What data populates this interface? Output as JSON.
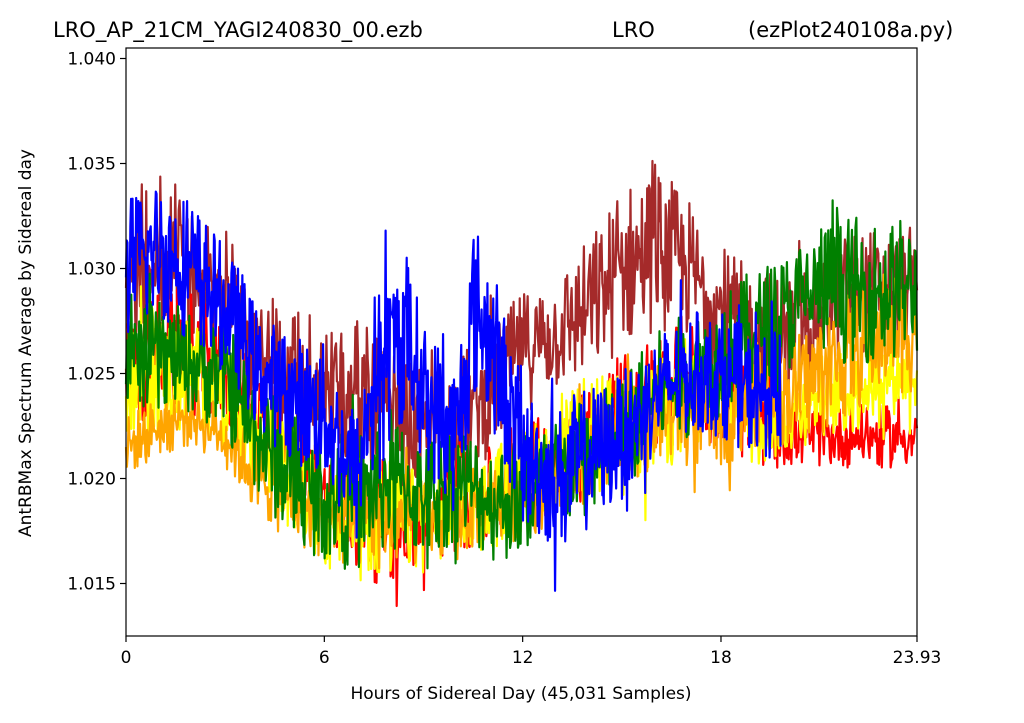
{
  "header": {
    "left": "LRO_AP_21CM_YAGI240830_00.ezb",
    "center": "LRO",
    "right": "(ezPlot240108a.py)"
  },
  "chart_data": {
    "type": "line",
    "xlabel": "Hours of Sidereal Day  (45,031 Samples)",
    "ylabel": "AntRBMax Spectrum Average by Sidereal day",
    "xlim": [
      0,
      23.93
    ],
    "ylim": [
      1.0125,
      1.0405
    ],
    "x_ticks": [
      {
        "value": 0,
        "label": "0"
      },
      {
        "value": 6,
        "label": "6"
      },
      {
        "value": 12,
        "label": "12"
      },
      {
        "value": 18,
        "label": "18"
      },
      {
        "value": 23.93,
        "label": "23.93"
      }
    ],
    "y_ticks": [
      {
        "value": 1.015,
        "label": "1.015"
      },
      {
        "value": 1.02,
        "label": "1.020"
      },
      {
        "value": 1.025,
        "label": "1.025"
      },
      {
        "value": 1.03,
        "label": "1.030"
      },
      {
        "value": 1.035,
        "label": "1.035"
      },
      {
        "value": 1.04,
        "label": "1.040"
      }
    ],
    "grid": false,
    "legend": "none",
    "series": [
      {
        "color": "#a52a2a",
        "hours": [
          0,
          1,
          2,
          3,
          4,
          5,
          6,
          7,
          8,
          9,
          10,
          11,
          12,
          13,
          14,
          15,
          16,
          17,
          18,
          19,
          20,
          21,
          22,
          23,
          23.93
        ],
        "center": [
          1.029,
          1.031,
          1.03,
          1.029,
          1.026,
          1.025,
          1.025,
          1.024,
          1.023,
          1.022,
          1.023,
          1.024,
          1.026,
          1.027,
          1.028,
          1.03,
          1.031,
          1.03,
          1.028,
          1.027,
          1.027,
          1.028,
          1.029,
          1.029,
          1.029
        ],
        "spread": [
          0.0035,
          0.0035,
          0.0035,
          0.003,
          0.003,
          0.003,
          0.003,
          0.0035,
          0.0035,
          0.003,
          0.003,
          0.003,
          0.003,
          0.003,
          0.0035,
          0.004,
          0.004,
          0.0035,
          0.003,
          0.003,
          0.003,
          0.003,
          0.003,
          0.003,
          0.003
        ]
      },
      {
        "color": "#ff0000",
        "hours": [
          0,
          1,
          2,
          3,
          4,
          5,
          6,
          7,
          8,
          9,
          10,
          11,
          12,
          13,
          14,
          15,
          16,
          17,
          18,
          19,
          20,
          21,
          22,
          23,
          23.93
        ],
        "center": [
          1.025,
          1.026,
          1.026,
          1.025,
          1.023,
          1.021,
          1.019,
          1.018,
          1.018,
          1.018,
          1.019,
          1.019,
          1.02,
          1.021,
          1.022,
          1.023,
          1.024,
          1.025,
          1.024,
          1.023,
          1.022,
          1.022,
          1.022,
          1.022,
          1.022
        ],
        "spread": [
          0.003,
          0.003,
          0.003,
          0.0025,
          0.0025,
          0.0025,
          0.0025,
          0.003,
          0.003,
          0.0025,
          0.0025,
          0.0025,
          0.0025,
          0.0025,
          0.003,
          0.003,
          0.003,
          0.003,
          0.0025,
          0.0025,
          0.0015,
          0.0015,
          0.0015,
          0.0015,
          0.0015
        ]
      },
      {
        "color": "#ffff00",
        "hours": [
          0,
          1,
          2,
          3,
          4,
          5,
          6,
          7,
          8,
          9,
          10,
          11,
          12,
          13,
          14,
          15,
          16,
          17,
          18,
          19,
          20,
          21,
          22,
          23,
          23.93
        ],
        "center": [
          1.024,
          1.025,
          1.025,
          1.024,
          1.022,
          1.02,
          1.018,
          1.018,
          1.018,
          1.018,
          1.019,
          1.019,
          1.02,
          1.021,
          1.022,
          1.022,
          1.023,
          1.024,
          1.024,
          1.023,
          1.023,
          1.024,
          1.024,
          1.025,
          1.025
        ],
        "spread": [
          0.003,
          0.003,
          0.003,
          0.0025,
          0.0025,
          0.0025,
          0.0025,
          0.003,
          0.003,
          0.0025,
          0.0025,
          0.0025,
          0.0025,
          0.0025,
          0.003,
          0.003,
          0.003,
          0.003,
          0.0025,
          0.0025,
          0.002,
          0.002,
          0.002,
          0.002,
          0.002
        ]
      },
      {
        "color": "#ffa500",
        "hours": [
          0,
          1,
          2,
          3,
          4,
          5,
          6,
          7,
          8,
          9,
          10,
          11,
          12,
          13,
          14,
          15,
          16,
          17,
          18,
          19,
          20,
          21,
          22,
          23,
          23.93
        ],
        "center": [
          1.0215,
          1.0225,
          1.023,
          1.022,
          1.02,
          1.019,
          1.018,
          1.018,
          1.018,
          1.018,
          1.018,
          1.019,
          1.019,
          1.02,
          1.021,
          1.022,
          1.023,
          1.023,
          1.023,
          1.024,
          1.024,
          1.025,
          1.026,
          1.027,
          1.027
        ],
        "spread": [
          0.0015,
          0.0015,
          0.0015,
          0.0015,
          0.002,
          0.002,
          0.002,
          0.0025,
          0.0025,
          0.002,
          0.002,
          0.002,
          0.002,
          0.002,
          0.0025,
          0.0025,
          0.0025,
          0.0025,
          0.0025,
          0.0025,
          0.0025,
          0.003,
          0.003,
          0.003,
          0.003
        ]
      },
      {
        "color": "#008000",
        "hours": [
          0,
          1,
          2,
          3,
          4,
          5,
          6,
          7,
          8,
          9,
          10,
          11,
          12,
          13,
          14,
          15,
          16,
          17,
          18,
          19,
          20,
          21,
          22,
          23,
          23.93
        ],
        "center": [
          1.0255,
          1.026,
          1.0255,
          1.025,
          1.022,
          1.02,
          1.019,
          1.019,
          1.02,
          1.019,
          1.02,
          1.019,
          1.019,
          1.02,
          1.021,
          1.022,
          1.024,
          1.025,
          1.026,
          1.027,
          1.028,
          1.029,
          1.029,
          1.029,
          1.029
        ],
        "spread": [
          0.0025,
          0.0025,
          0.0025,
          0.003,
          0.003,
          0.003,
          0.003,
          0.0035,
          0.0035,
          0.003,
          0.003,
          0.003,
          0.003,
          0.003,
          0.003,
          0.003,
          0.003,
          0.003,
          0.003,
          0.003,
          0.003,
          0.0035,
          0.0035,
          0.0035,
          0.0035
        ]
      },
      {
        "color": "#0000ff",
        "hours": [
          0,
          1,
          2,
          3,
          3.5,
          4,
          5,
          6,
          7,
          7.5,
          8,
          8.5,
          9,
          10,
          10.5,
          11,
          12,
          13,
          14,
          15,
          16,
          17,
          18,
          19,
          19.8
        ],
        "center": [
          1.03,
          1.031,
          1.03,
          1.028,
          1.027,
          1.025,
          1.024,
          1.023,
          1.02,
          1.025,
          1.026,
          1.027,
          1.024,
          1.022,
          1.028,
          1.027,
          1.021,
          1.02,
          1.021,
          1.022,
          1.024,
          1.025,
          1.025,
          1.024,
          1.024
        ],
        "spread": [
          0.0035,
          0.0035,
          0.0035,
          0.003,
          0.003,
          0.003,
          0.003,
          0.0035,
          0.0035,
          0.004,
          0.0045,
          0.004,
          0.0035,
          0.004,
          0.0045,
          0.004,
          0.0035,
          0.0035,
          0.0035,
          0.003,
          0.003,
          0.003,
          0.003,
          0.003,
          0.003
        ]
      }
    ]
  }
}
